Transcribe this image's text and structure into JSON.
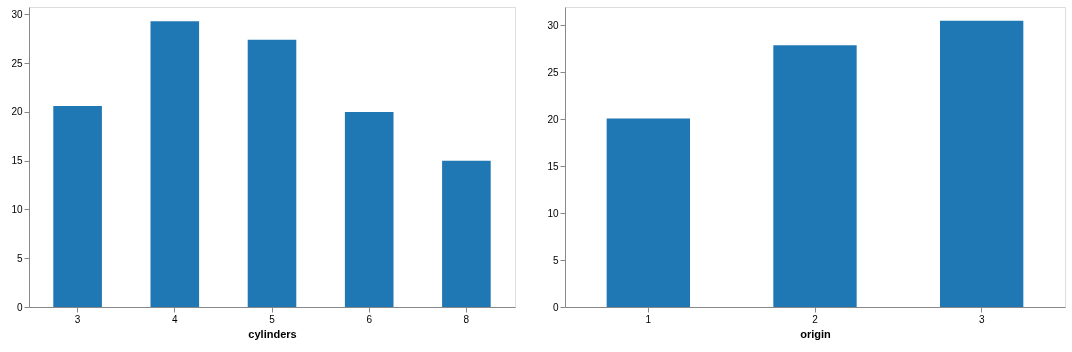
{
  "chart_data": [
    {
      "type": "bar",
      "categories": [
        "3",
        "4",
        "5",
        "6",
        "8"
      ],
      "values": [
        20.6,
        29.3,
        27.4,
        20.0,
        15.0
      ],
      "color": "#1f77b4",
      "xlabel": "cylinders",
      "ylim": [
        0,
        30.75
      ],
      "yticks": [
        0,
        5,
        10,
        15,
        20,
        25,
        30
      ],
      "grid": false
    },
    {
      "type": "bar",
      "categories": [
        "1",
        "2",
        "3"
      ],
      "values": [
        20.1,
        27.9,
        30.5
      ],
      "color": "#1f77b4",
      "xlabel": "origin",
      "ylim": [
        0,
        31.97
      ],
      "yticks": [
        0,
        5,
        10,
        15,
        20,
        25,
        30
      ],
      "grid": false
    }
  ]
}
